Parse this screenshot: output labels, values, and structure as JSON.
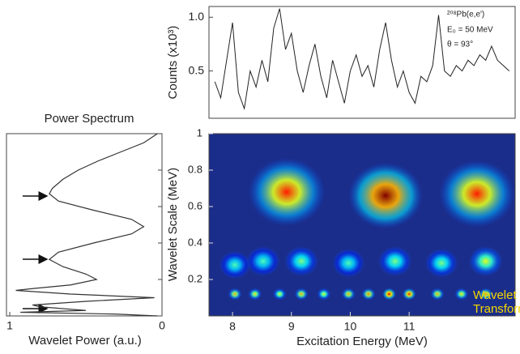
{
  "chart_data": [
    {
      "type": "line",
      "ylabel": "Counts (x10³)",
      "annotations": [
        "²⁰⁸Pb(e,e')",
        "E₀ = 50 MeV",
        "θ = 93°"
      ],
      "x": [
        7.7,
        7.8,
        7.9,
        8.0,
        8.1,
        8.2,
        8.3,
        8.4,
        8.5,
        8.6,
        8.7,
        8.8,
        8.9,
        9.0,
        9.1,
        9.2,
        9.3,
        9.4,
        9.5,
        9.6,
        9.7,
        9.8,
        9.9,
        10.0,
        10.1,
        10.2,
        10.3,
        10.4,
        10.5,
        10.6,
        10.7,
        10.8,
        10.9,
        11.0,
        11.1,
        11.2,
        11.3,
        11.4,
        11.5,
        11.6,
        11.7,
        11.8,
        11.9,
        12.0,
        12.1,
        12.2,
        12.3,
        12.4,
        12.5,
        12.6,
        12.7
      ],
      "values": [
        0.4,
        0.25,
        0.6,
        0.95,
        0.3,
        0.15,
        0.5,
        0.35,
        0.6,
        0.4,
        0.9,
        1.08,
        0.7,
        0.85,
        0.5,
        0.3,
        0.55,
        0.75,
        0.45,
        0.25,
        0.6,
        0.4,
        0.2,
        0.5,
        0.65,
        0.45,
        0.55,
        0.35,
        0.7,
        0.95,
        0.6,
        0.35,
        0.5,
        0.3,
        0.2,
        0.45,
        0.4,
        0.55,
        1.02,
        0.5,
        0.45,
        0.55,
        0.5,
        0.6,
        0.55,
        0.65,
        0.6,
        0.73,
        0.6,
        0.55,
        0.5
      ],
      "color": "#222222",
      "xlim": [
        7.6,
        12.8
      ],
      "ylim": [
        0.06,
        1.1
      ],
      "yticks": [
        0.5,
        {
          "value": 1,
          "label": "1.0"
        }
      ]
    },
    {
      "type": "power",
      "title": "Power Spectrum",
      "xlabel": "Wavelet Power (a.u.)",
      "scale": [
        1,
        0.95,
        0.9,
        0.85,
        0.8,
        0.75,
        0.7,
        0.67,
        0.63,
        0.58,
        0.53,
        0.49,
        0.45,
        0.4,
        0.35,
        0.31,
        0.27,
        0.23,
        0.2,
        0.17,
        0.15,
        0.14,
        0.12,
        0.1,
        0.08,
        0.06,
        0.05,
        0.03,
        0.02,
        0.01,
        0
      ],
      "values": [
        0.03,
        0.12,
        0.27,
        0.42,
        0.55,
        0.65,
        0.72,
        0.74,
        0.68,
        0.45,
        0.2,
        0.12,
        0.2,
        0.45,
        0.68,
        0.74,
        0.65,
        0.5,
        0.43,
        0.6,
        0.85,
        0.96,
        0.6,
        0.05,
        0.5,
        0.85,
        0.8,
        0.5,
        0.93,
        0.3,
        0.03
      ],
      "color": "#333333",
      "xlim": [
        1,
        0
      ],
      "xticks": [
        1,
        0
      ],
      "ylim": [
        0,
        1
      ]
    },
    {
      "type": "heatmap",
      "xlabel": "Excitation Energy (MeV)",
      "ylabel": "Wavelet Scale (MeV)",
      "annotations": [
        "Wavelet",
        "Transform"
      ],
      "x": [
        8.92,
        10.6,
        12.15,
        8.04,
        8.52,
        9.17,
        9.97,
        10.76,
        11.55,
        12.3,
        8.04,
        8.38,
        8.8,
        9.17,
        9.55,
        9.97,
        10.31,
        10.66,
        11.0,
        11.48,
        11.89,
        12.3
      ],
      "y": [
        0.68,
        0.66,
        0.67,
        0.28,
        0.3,
        0.3,
        0.29,
        0.3,
        0.29,
        0.3,
        0.12,
        0.12,
        0.12,
        0.12,
        0.12,
        0.12,
        0.12,
        0.12,
        0.12,
        0.12,
        0.12,
        0.12
      ],
      "values": [
        0.85,
        1.0,
        0.85,
        0.45,
        0.45,
        0.5,
        0.45,
        0.5,
        0.5,
        0.6,
        0.7,
        0.65,
        0.6,
        0.7,
        0.6,
        0.7,
        0.75,
        0.9,
        0.85,
        0.7,
        0.65,
        0.75
      ],
      "xlim": [
        7.6,
        12.8
      ],
      "ylim": [
        0,
        1
      ],
      "xticks": [
        8,
        9,
        10,
        11
      ],
      "yticks": [
        0.2,
        0.4,
        0.6,
        0.8,
        1
      ]
    }
  ]
}
